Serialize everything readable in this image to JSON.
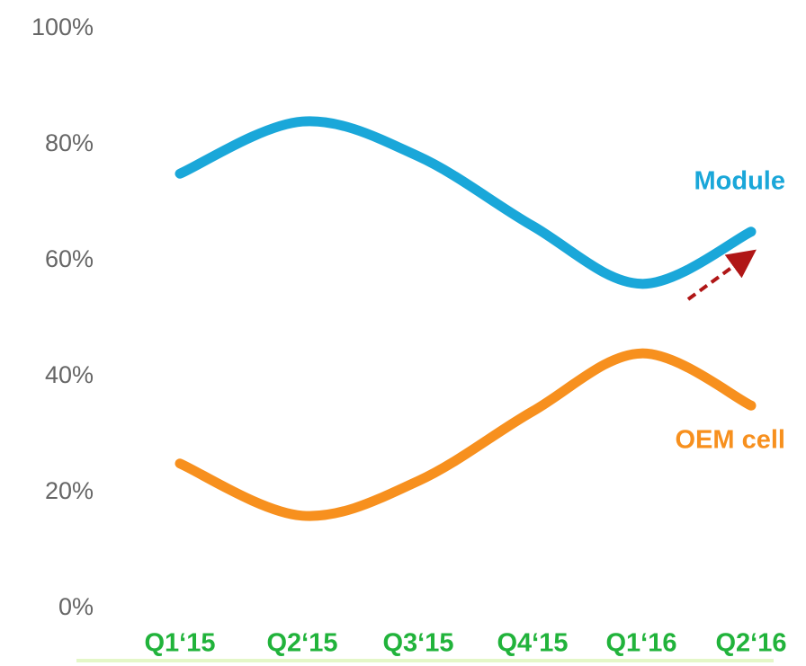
{
  "chart_data": {
    "type": "line",
    "categories": [
      "Q1‘15",
      "Q2‘15",
      "Q3‘15",
      "Q4‘15",
      "Q1‘16",
      "Q2‘16"
    ],
    "series": [
      {
        "name": "Module",
        "color": "#1aa7d9",
        "values": [
          75,
          84,
          78,
          66,
          56,
          65
        ]
      },
      {
        "name": "OEM cell",
        "color": "#f7901e",
        "values": [
          25,
          16,
          22,
          34,
          44,
          35
        ]
      }
    ],
    "ylim": [
      0,
      100
    ],
    "yticks": [
      {
        "value": 0,
        "label": "0%"
      },
      {
        "value": 20,
        "label": "20%"
      },
      {
        "value": 40,
        "label": "40%"
      },
      {
        "value": 60,
        "label": "60%"
      },
      {
        "value": 80,
        "label": "80%"
      },
      {
        "value": 100,
        "label": "100%"
      }
    ],
    "grid": false
  }
}
